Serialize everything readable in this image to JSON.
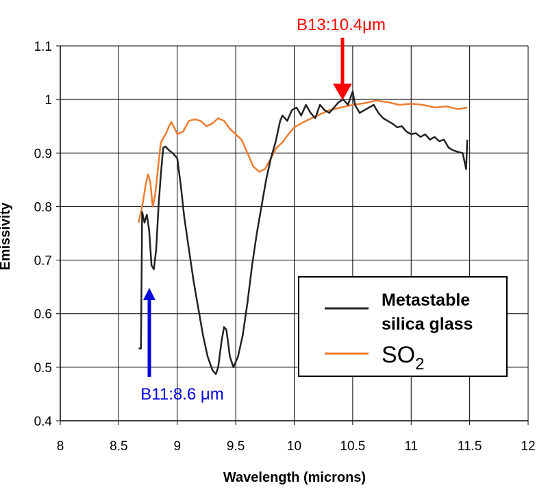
{
  "chart_data": {
    "type": "line",
    "title": "",
    "xlabel": "Wavelength (microns)",
    "ylabel": "Emissivity",
    "xlim": [
      8,
      12
    ],
    "ylim": [
      0.4,
      1.1
    ],
    "x_ticks": [
      "8",
      "8.5",
      "9",
      "9.5",
      "10",
      "10.5",
      "11",
      "11.5",
      "12"
    ],
    "y_ticks": [
      "0.4",
      "0.5",
      "0.6",
      "0.7",
      "0.8",
      "0.9",
      "1",
      "1.1"
    ],
    "grid": true,
    "legend_position": "inside-lower-right",
    "series": [
      {
        "name": "Metastable silica glass",
        "color": "#222222",
        "points": [
          [
            8.67,
            0.535
          ],
          [
            8.69,
            0.535
          ],
          [
            8.7,
            0.79
          ],
          [
            8.72,
            0.77
          ],
          [
            8.74,
            0.785
          ],
          [
            8.76,
            0.755
          ],
          [
            8.78,
            0.69
          ],
          [
            8.8,
            0.683
          ],
          [
            8.82,
            0.72
          ],
          [
            8.84,
            0.8
          ],
          [
            8.86,
            0.86
          ],
          [
            8.88,
            0.91
          ],
          [
            8.9,
            0.912
          ],
          [
            8.93,
            0.905
          ],
          [
            8.96,
            0.9
          ],
          [
            9.0,
            0.89
          ],
          [
            9.03,
            0.84
          ],
          [
            9.06,
            0.78
          ],
          [
            9.1,
            0.72
          ],
          [
            9.14,
            0.66
          ],
          [
            9.18,
            0.61
          ],
          [
            9.22,
            0.56
          ],
          [
            9.26,
            0.52
          ],
          [
            9.3,
            0.495
          ],
          [
            9.33,
            0.487
          ],
          [
            9.35,
            0.5
          ],
          [
            9.38,
            0.55
          ],
          [
            9.4,
            0.575
          ],
          [
            9.42,
            0.57
          ],
          [
            9.45,
            0.52
          ],
          [
            9.48,
            0.5
          ],
          [
            9.52,
            0.52
          ],
          [
            9.56,
            0.56
          ],
          [
            9.6,
            0.62
          ],
          [
            9.64,
            0.69
          ],
          [
            9.68,
            0.75
          ],
          [
            9.72,
            0.8
          ],
          [
            9.76,
            0.85
          ],
          [
            9.8,
            0.89
          ],
          [
            9.84,
            0.92
          ],
          [
            9.88,
            0.96
          ],
          [
            9.9,
            0.97
          ],
          [
            9.94,
            0.96
          ],
          [
            9.98,
            0.98
          ],
          [
            10.02,
            0.985
          ],
          [
            10.06,
            0.97
          ],
          [
            10.1,
            0.99
          ],
          [
            10.14,
            0.975
          ],
          [
            10.18,
            0.965
          ],
          [
            10.22,
            0.99
          ],
          [
            10.26,
            0.98
          ],
          [
            10.3,
            0.975
          ],
          [
            10.34,
            0.985
          ],
          [
            10.38,
            0.995
          ],
          [
            10.42,
            1.0
          ],
          [
            10.46,
            0.99
          ],
          [
            10.5,
            1.015
          ],
          [
            10.52,
            0.99
          ],
          [
            10.56,
            0.975
          ],
          [
            10.6,
            0.98
          ],
          [
            10.64,
            0.985
          ],
          [
            10.68,
            0.99
          ],
          [
            10.72,
            0.975
          ],
          [
            10.76,
            0.965
          ],
          [
            10.8,
            0.96
          ],
          [
            10.84,
            0.955
          ],
          [
            10.88,
            0.948
          ],
          [
            10.92,
            0.95
          ],
          [
            10.96,
            0.94
          ],
          [
            11.0,
            0.935
          ],
          [
            11.04,
            0.937
          ],
          [
            11.08,
            0.93
          ],
          [
            11.12,
            0.935
          ],
          [
            11.16,
            0.925
          ],
          [
            11.2,
            0.93
          ],
          [
            11.24,
            0.922
          ],
          [
            11.28,
            0.925
          ],
          [
            11.32,
            0.91
          ],
          [
            11.36,
            0.905
          ],
          [
            11.4,
            0.902
          ],
          [
            11.44,
            0.9
          ],
          [
            11.47,
            0.87
          ],
          [
            11.48,
            0.925
          ]
        ]
      },
      {
        "name": "SO2",
        "color": "#ED7D31",
        "points": [
          [
            8.67,
            0.77
          ],
          [
            8.7,
            0.8
          ],
          [
            8.73,
            0.84
          ],
          [
            8.75,
            0.86
          ],
          [
            8.77,
            0.845
          ],
          [
            8.79,
            0.8
          ],
          [
            8.81,
            0.82
          ],
          [
            8.84,
            0.88
          ],
          [
            8.86,
            0.92
          ],
          [
            8.9,
            0.935
          ],
          [
            8.93,
            0.95
          ],
          [
            8.95,
            0.958
          ],
          [
            8.98,
            0.945
          ],
          [
            9.0,
            0.935
          ],
          [
            9.05,
            0.94
          ],
          [
            9.1,
            0.96
          ],
          [
            9.15,
            0.963
          ],
          [
            9.2,
            0.96
          ],
          [
            9.25,
            0.95
          ],
          [
            9.3,
            0.955
          ],
          [
            9.35,
            0.965
          ],
          [
            9.4,
            0.96
          ],
          [
            9.45,
            0.945
          ],
          [
            9.5,
            0.935
          ],
          [
            9.55,
            0.925
          ],
          [
            9.6,
            0.9
          ],
          [
            9.65,
            0.875
          ],
          [
            9.7,
            0.865
          ],
          [
            9.75,
            0.87
          ],
          [
            9.8,
            0.89
          ],
          [
            9.85,
            0.91
          ],
          [
            9.9,
            0.92
          ],
          [
            9.95,
            0.935
          ],
          [
            10.0,
            0.948
          ],
          [
            10.1,
            0.96
          ],
          [
            10.2,
            0.97
          ],
          [
            10.3,
            0.98
          ],
          [
            10.4,
            0.985
          ],
          [
            10.5,
            0.99
          ],
          [
            10.6,
            0.993
          ],
          [
            10.7,
            0.998
          ],
          [
            10.8,
            0.995
          ],
          [
            10.9,
            0.99
          ],
          [
            11.0,
            0.992
          ],
          [
            11.1,
            0.99
          ],
          [
            11.2,
            0.985
          ],
          [
            11.3,
            0.987
          ],
          [
            11.4,
            0.982
          ],
          [
            11.48,
            0.985
          ]
        ]
      }
    ],
    "annotations": [
      {
        "text": "B13:10.4μm",
        "color": "#FF0000",
        "x": 10.4,
        "direction": "down"
      },
      {
        "text": "B11:8.6 μm",
        "color": "#0000DD",
        "x": 8.75,
        "direction": "up"
      }
    ],
    "legend": {
      "entries": [
        {
          "line1": "Metastable",
          "line2": "silica glass",
          "color": "#222222"
        },
        {
          "label": "SO",
          "subscript": "2",
          "color": "#ED7D31"
        }
      ]
    }
  }
}
